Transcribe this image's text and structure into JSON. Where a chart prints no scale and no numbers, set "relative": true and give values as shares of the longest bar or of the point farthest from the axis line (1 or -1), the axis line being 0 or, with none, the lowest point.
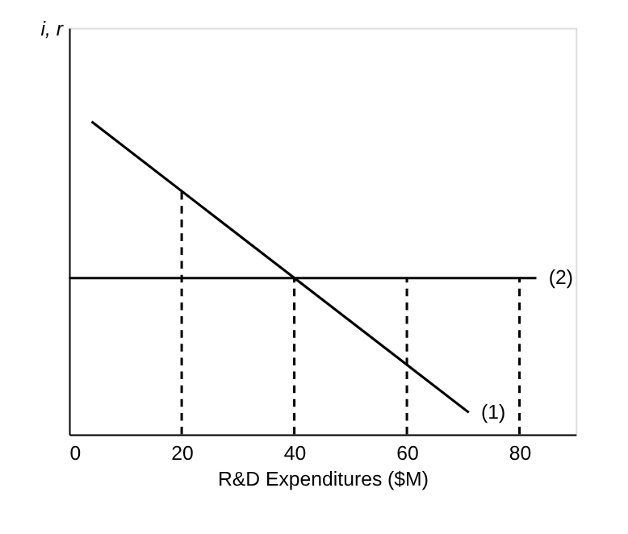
{
  "chart_data": {
    "type": "line",
    "relative": true,
    "xlabel": "R&D Expenditures ($M)",
    "ylabel": "i, r",
    "xlim": [
      0,
      90
    ],
    "xticks": [
      0,
      20,
      40,
      60,
      80
    ],
    "grid": false,
    "tick_labels": "x",
    "series": [
      {
        "name": "(1)",
        "color": "#000000",
        "x": [
          4,
          71
        ],
        "values": [
          1,
          0.07
        ]
      },
      {
        "name": "(2)",
        "color": "#000000",
        "x": [
          0,
          83
        ],
        "values": [
          0.5,
          0.5
        ]
      },
      {
        "color": "#000000",
        "line_style": "dashed",
        "x": [
          20,
          20
        ],
        "values": [
          0,
          0.778
        ]
      },
      {
        "color": "#000000",
        "line_style": "dashed",
        "x": [
          40,
          40
        ],
        "values": [
          0,
          0.5
        ]
      },
      {
        "color": "#000000",
        "line_style": "dashed",
        "x": [
          60,
          60
        ],
        "values": [
          0,
          0.5
        ]
      },
      {
        "color": "#000000",
        "line_style": "dashed",
        "x": [
          80,
          80
        ],
        "values": [
          0,
          0.5
        ]
      }
    ]
  }
}
